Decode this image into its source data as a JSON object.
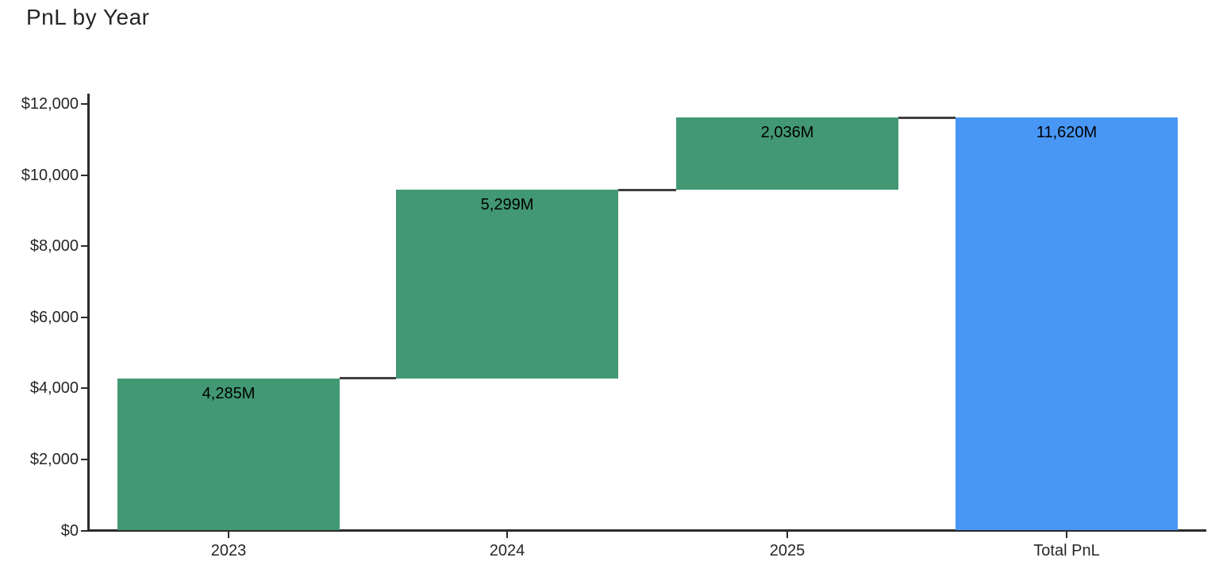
{
  "title": "PnL by Year",
  "colors": {
    "increase_bar": "#419873",
    "total_bar": "#4997f5",
    "connector": "#433f3f",
    "axis": "#2b2b2b",
    "tick_text": "#262626",
    "bar_label_text": "#000000",
    "background": "#ffffff"
  },
  "chart_data": {
    "type": "bar",
    "subtype": "waterfall",
    "title": "PnL by Year",
    "categories": [
      "2023",
      "2024",
      "2025",
      "Total PnL"
    ],
    "series": [
      {
        "name": "PnL",
        "values": [
          4285,
          5299,
          2036,
          11620
        ],
        "measures": [
          "relative",
          "relative",
          "relative",
          "total"
        ]
      }
    ],
    "cumulative_levels": [
      4285,
      9584,
      11620,
      11620
    ],
    "bar_labels": [
      "4,285M",
      "5,299M",
      "2,036M",
      "11,620M"
    ],
    "xlabel": "",
    "ylabel": "",
    "ylim": [
      0,
      12000
    ],
    "y_ticks": [
      0,
      2000,
      4000,
      6000,
      8000,
      10000,
      12000
    ],
    "y_tick_labels": [
      "$0",
      "$2,000",
      "$4,000",
      "$6,000",
      "$8,000",
      "$10,000",
      "$12,000"
    ],
    "grid": false,
    "legend": false,
    "connectors": true
  }
}
